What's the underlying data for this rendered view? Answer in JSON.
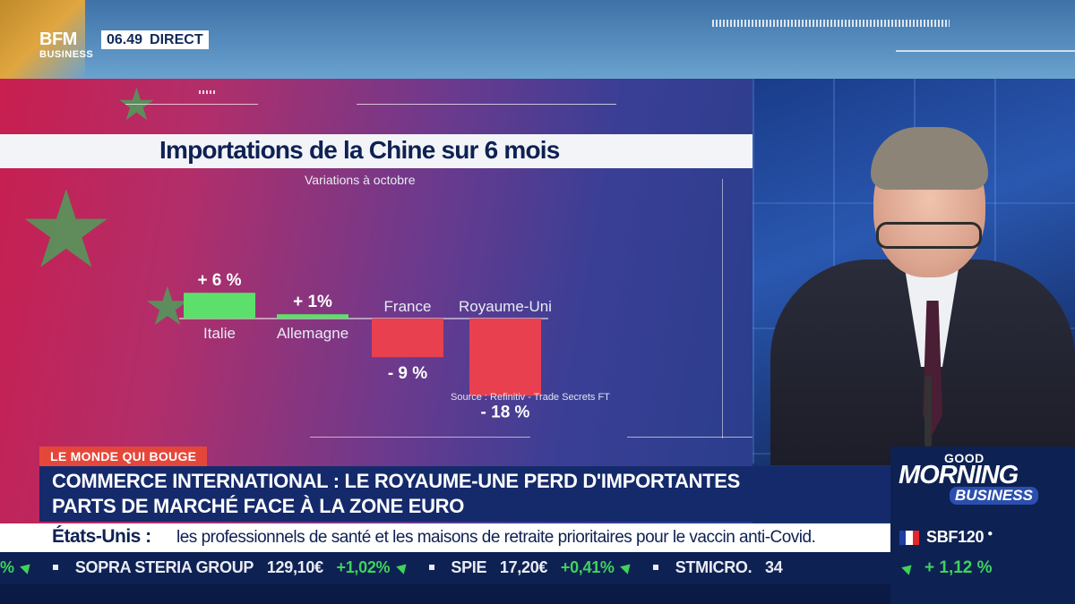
{
  "header": {
    "logo_main": "BFM",
    "logo_sub": "BUSINESS",
    "time": "06.49",
    "live_label": "DIRECT"
  },
  "chart_data": {
    "type": "bar",
    "title": "Importations de la Chine sur 6 mois",
    "subtitle": "Variations à octobre",
    "source": "Source : Refinitiv - Trade Secrets FT",
    "categories": [
      "Italie",
      "Allemagne",
      "France",
      "Royaume-Uni"
    ],
    "values": [
      6,
      1,
      -9,
      -18
    ],
    "value_labels": [
      "+ 6 %",
      "+ 1%",
      "- 9 %",
      "- 18 %"
    ],
    "positive_color": "#5de06b",
    "negative_color": "#e8404f"
  },
  "lower_third": {
    "category": "LE MONDE QUI BOUGE",
    "headline_line1": "COMMERCE INTERNATIONAL : LE ROYAUME-UNE PERD D'IMPORTANTES",
    "headline_line2": "PARTS DE MARCHÉ FACE À LA ZONE EURO"
  },
  "news_bar": {
    "region": "États-Unis :",
    "text": "les professionnels de santé et les maisons de retraite prioritaires pour le vaccin anti-Covid."
  },
  "ticker": {
    "lead_change": "%",
    "items": [
      {
        "name": "SOPRA STERIA GROUP",
        "price": "129,10€",
        "change": "+1,02%"
      },
      {
        "name": "SPIE",
        "price": "17,20€",
        "change": "+0,41%"
      },
      {
        "name": "STMICRO.",
        "price": "34",
        "change": ""
      }
    ]
  },
  "brand": {
    "good": "GOOD",
    "morning": "MORNING",
    "business": "BUSINESS"
  },
  "index": {
    "name": "SBF120",
    "marker": "●",
    "change": "+ 1,12 %",
    "flag_colors": [
      "#1e3fa0",
      "#ffffff",
      "#e1262d"
    ]
  },
  "colors": {
    "navy": "#0e2153",
    "tag_red": "#e4473a",
    "up_green": "#3fd35b"
  }
}
